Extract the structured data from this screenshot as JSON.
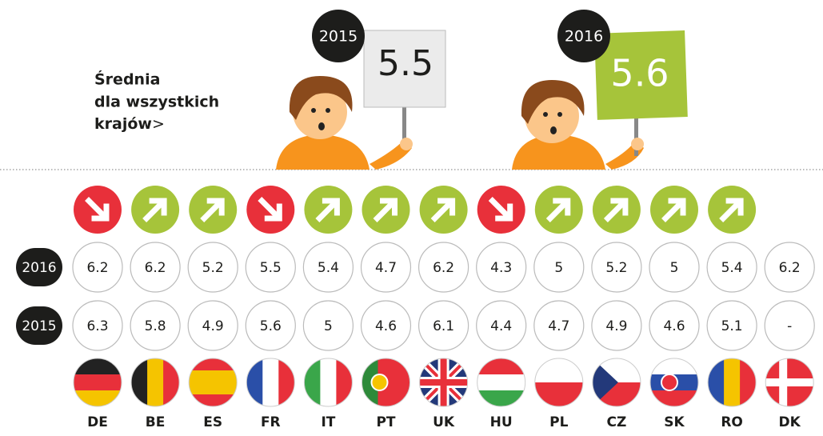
{
  "header": {
    "title_lines": [
      "Średnia",
      "dla wszystkich",
      "krajów"
    ],
    "pointer": ">"
  },
  "signs": [
    {
      "year": 2015,
      "value": 5.5
    },
    {
      "year": 2016,
      "value": 5.6
    }
  ],
  "rows": [
    {
      "label": 2016,
      "values": [
        6.2,
        6.2,
        5.2,
        5.5,
        5.4,
        4.7,
        6.2,
        4.3,
        5,
        5.2,
        5,
        5.4,
        6.2
      ]
    },
    {
      "label": 2015,
      "values": [
        6.3,
        5.8,
        4.9,
        5.6,
        5,
        4.6,
        6.1,
        4.4,
        4.7,
        4.9,
        4.6,
        5.1,
        "-"
      ]
    }
  ],
  "trends": [
    "down",
    "up",
    "up",
    "down",
    "up",
    "up",
    "up",
    "down",
    "up",
    "up",
    "up",
    "up",
    null
  ],
  "countries": [
    {
      "code": "DE",
      "flag": {
        "dir": "h",
        "colors": [
          "#222",
          "#e8303a",
          "#f5c400"
        ]
      }
    },
    {
      "code": "BE",
      "flag": {
        "dir": "v",
        "colors": [
          "#222",
          "#f5c400",
          "#e8303a"
        ]
      }
    },
    {
      "code": "ES",
      "flag": {
        "dir": "h",
        "colors": [
          "#e8303a",
          "#f5c400",
          "#f5c400",
          "#e8303a"
        ]
      }
    },
    {
      "code": "FR",
      "flag": {
        "dir": "v",
        "colors": [
          "#2a4fa8",
          "#fff",
          "#e8303a"
        ]
      }
    },
    {
      "code": "IT",
      "flag": {
        "dir": "v",
        "colors": [
          "#3aa64a",
          "#fff",
          "#e8303a"
        ]
      }
    },
    {
      "code": "PT",
      "flag": {
        "dir": "v",
        "colors": [
          "#2e8a3a",
          "#e8303a",
          "#e8303a"
        ],
        "emblem": "#f5c400"
      }
    },
    {
      "code": "UK",
      "flag": {
        "dir": "h",
        "colors": [
          "#23397a"
        ],
        "cross": "#e8303a",
        "saltire": true
      }
    },
    {
      "code": "HU",
      "flag": {
        "dir": "h",
        "colors": [
          "#e8303a",
          "#fff",
          "#3aa64a"
        ]
      }
    },
    {
      "code": "PL",
      "flag": {
        "dir": "h",
        "colors": [
          "#fff",
          "#e8303a"
        ]
      }
    },
    {
      "code": "CZ",
      "flag": {
        "dir": "h",
        "colors": [
          "#fff",
          "#e8303a"
        ],
        "wedge": "#23397a"
      }
    },
    {
      "code": "SK",
      "flag": {
        "dir": "h",
        "colors": [
          "#fff",
          "#2a4fa8",
          "#e8303a"
        ],
        "emblem": "#e8303a"
      }
    },
    {
      "code": "RO",
      "flag": {
        "dir": "v",
        "colors": [
          "#2a4fa8",
          "#f5c400",
          "#e8303a"
        ]
      }
    },
    {
      "code": "DK",
      "flag": {
        "dir": "h",
        "colors": [
          "#e8303a"
        ],
        "cross": "#fff"
      }
    }
  ]
}
